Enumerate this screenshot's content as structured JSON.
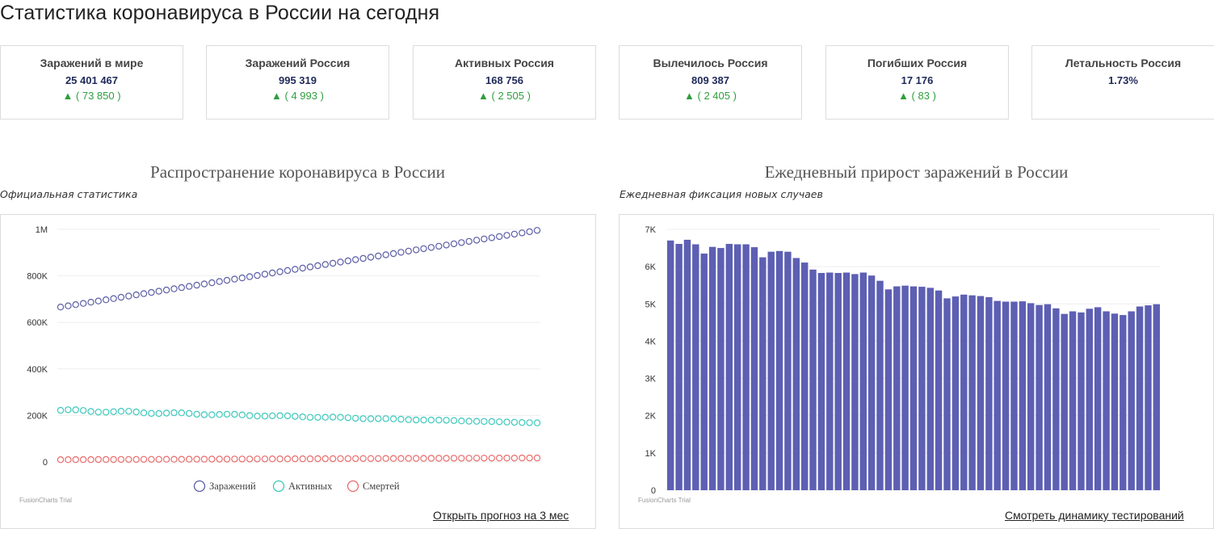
{
  "page": {
    "title": "Статистика коронавируса в России на сегодня"
  },
  "stats": [
    {
      "label": "Заражений в мире",
      "value": "25 401 467",
      "delta": "▲ ( 73 850 )"
    },
    {
      "label": "Заражений Россия",
      "value": "995 319",
      "delta": "▲ ( 4 993 )"
    },
    {
      "label": "Активных Россия",
      "value": "168 756",
      "delta": "▲ ( 2 505 )"
    },
    {
      "label": "Вылечилось Россия",
      "value": "809 387",
      "delta": "▲ ( 2 405 )"
    },
    {
      "label": "Погибших Россия",
      "value": "17 176",
      "delta": "▲ ( 83 )"
    },
    {
      "label": "Летальность Россия",
      "value": "1.73%",
      "delta": ""
    }
  ],
  "colors": {
    "infected": "#5b5ea6",
    "active": "#3cc8bb",
    "deaths": "#e86c6c",
    "bars": "#5d5fb3",
    "delta_up": "#2e9e3e"
  },
  "chart_data": [
    {
      "type": "line",
      "title": "Распространение коронавируса в России",
      "subtitle": "Официальная статистика",
      "watermark": "FusionCharts Trial",
      "ylim": [
        0,
        1000000
      ],
      "y_ticks": [
        {
          "value": 0,
          "label": "0"
        },
        {
          "value": 200000,
          "label": "200K"
        },
        {
          "value": 400000,
          "label": "400K"
        },
        {
          "value": 600000,
          "label": "600K"
        },
        {
          "value": 800000,
          "label": "800K"
        },
        {
          "value": 1000000,
          "label": "1M"
        }
      ],
      "legend_position": "bottom",
      "point_count": 64,
      "series": [
        {
          "name": "Заражений",
          "key": "infected",
          "start": 666000,
          "end": 995319
        },
        {
          "name": "Активных",
          "key": "active",
          "start": 218000,
          "end": 168756,
          "wobble": [
            224000,
            226000,
            224000,
            222000,
            220000,
            216000,
            218000,
            214000,
            212000,
            210000,
            208000,
            206000,
            206000,
            204000,
            200000,
            198000,
            196000,
            196000,
            194000,
            190000,
            188000,
            186000,
            184000,
            182000,
            181000,
            180000,
            179000,
            177000,
            176000,
            174000,
            173000,
            171000,
            170000,
            169000
          ]
        },
        {
          "name": "Смертей",
          "key": "deaths",
          "start": 9700,
          "end": 17176
        }
      ]
    },
    {
      "type": "bar",
      "title": "Ежедневный прирост заражений в России",
      "subtitle": "Ежедневная фиксация новых случаев",
      "watermark": "FusionCharts Trial",
      "ylim": [
        0,
        7000
      ],
      "y_ticks": [
        {
          "value": 0,
          "label": "0"
        },
        {
          "value": 1000,
          "label": "1K"
        },
        {
          "value": 2000,
          "label": "2K"
        },
        {
          "value": 3000,
          "label": "3K"
        },
        {
          "value": 4000,
          "label": "4K"
        },
        {
          "value": 5000,
          "label": "5K"
        },
        {
          "value": 6000,
          "label": "6K"
        },
        {
          "value": 7000,
          "label": "7K"
        }
      ],
      "values": [
        6700,
        6610,
        6720,
        6600,
        6350,
        6530,
        6500,
        6610,
        6600,
        6600,
        6520,
        6250,
        6400,
        6420,
        6400,
        6230,
        6110,
        5920,
        5830,
        5840,
        5830,
        5840,
        5800,
        5840,
        5760,
        5620,
        5390,
        5470,
        5490,
        5470,
        5460,
        5430,
        5360,
        5150,
        5200,
        5250,
        5230,
        5210,
        5180,
        5080,
        5060,
        5060,
        5070,
        5020,
        4970,
        4990,
        4880,
        4730,
        4800,
        4770,
        4870,
        4910,
        4800,
        4740,
        4700,
        4800,
        4930,
        4960,
        4990
      ]
    }
  ],
  "links": {
    "forecast": "Открыть прогноз на 3 мес",
    "testing": "Смотреть динамику тестирований"
  }
}
